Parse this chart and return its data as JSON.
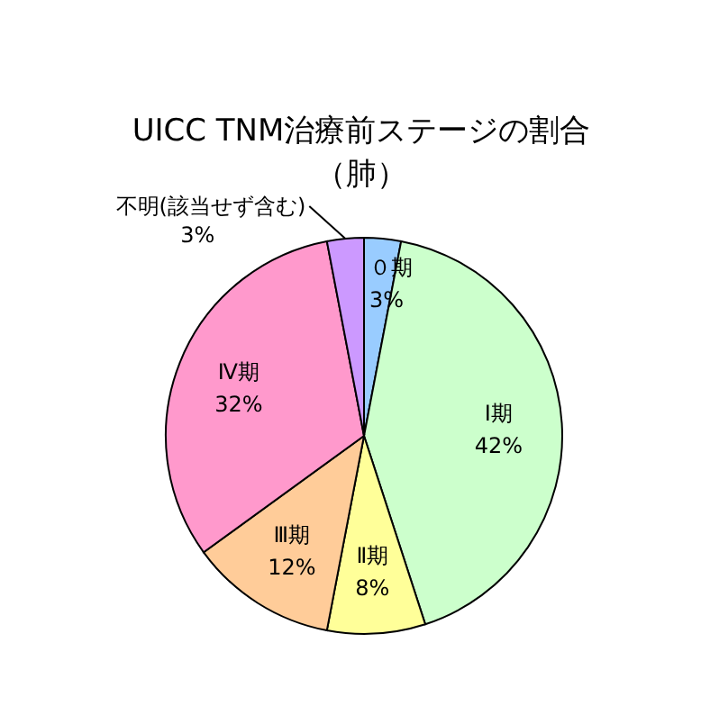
{
  "chart_data": {
    "type": "pie",
    "title": "UICC TNM治療前ステージの割合",
    "subtitle": "（肺）",
    "categories": [
      "０期",
      "Ⅰ期",
      "Ⅱ期",
      "Ⅲ期",
      "Ⅳ期",
      "不明(該当せず含む)"
    ],
    "values": [
      3,
      42,
      8,
      12,
      32,
      3
    ],
    "value_labels": [
      "3%",
      "42%",
      "8%",
      "12%",
      "32%",
      "3%"
    ],
    "colors": [
      "#99ccff",
      "#ccffcc",
      "#ffff99",
      "#ffcc99",
      "#ff99cc",
      "#cc99ff"
    ],
    "legend": false
  }
}
